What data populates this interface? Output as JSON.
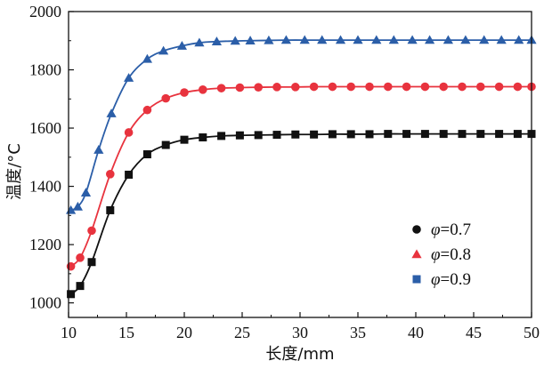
{
  "chart_data": {
    "type": "line",
    "title": "",
    "xlabel": "长度/mm",
    "ylabel": "温度/°C",
    "xlim": [
      10,
      50
    ],
    "ylim": [
      950,
      2000
    ],
    "x_ticks": [
      10,
      15,
      20,
      25,
      30,
      35,
      40,
      45,
      50
    ],
    "y_ticks": [
      1000,
      1200,
      1400,
      1600,
      1800,
      2000
    ],
    "legend_position": "right",
    "series": [
      {
        "name": "φ=0.7",
        "legend_symbol": "φ",
        "legend_value": "=0.7",
        "legend_marker": "circle",
        "marker": "square",
        "color": "#111111",
        "x": [
          10.2,
          11.0,
          12.0,
          13.6,
          15.2,
          16.8,
          18.4,
          20.0,
          21.6,
          23.2,
          24.8,
          26.4,
          28.0,
          29.6,
          31.2,
          32.8,
          34.4,
          36.0,
          37.6,
          39.2,
          40.8,
          42.4,
          44.0,
          45.6,
          47.2,
          48.8,
          50.0
        ],
        "y": [
          1030,
          1058,
          1140,
          1318,
          1440,
          1510,
          1542,
          1560,
          1568,
          1573,
          1575,
          1576,
          1577,
          1578,
          1578,
          1579,
          1579,
          1579,
          1580,
          1580,
          1580,
          1580,
          1580,
          1580,
          1580,
          1580,
          1580
        ]
      },
      {
        "name": "φ=0.8",
        "legend_symbol": "φ",
        "legend_value": "=0.8",
        "legend_marker": "triangle",
        "marker": "circle",
        "color": "#e8333e",
        "x": [
          10.2,
          11.0,
          12.0,
          13.6,
          15.2,
          16.8,
          18.4,
          20.0,
          21.6,
          23.2,
          24.8,
          26.4,
          28.0,
          29.6,
          31.2,
          32.8,
          34.4,
          36.0,
          37.6,
          39.2,
          40.8,
          42.4,
          44.0,
          45.6,
          47.2,
          48.8,
          50.0
        ],
        "y": [
          1125,
          1155,
          1248,
          1442,
          1585,
          1662,
          1702,
          1722,
          1732,
          1737,
          1739,
          1740,
          1741,
          1741,
          1742,
          1742,
          1742,
          1742,
          1742,
          1742,
          1742,
          1742,
          1742,
          1742,
          1742,
          1742,
          1742
        ]
      },
      {
        "name": "φ=0.9",
        "legend_symbol": "φ",
        "legend_value": "=0.9",
        "legend_marker": "square",
        "marker": "triangle",
        "color": "#2b5ea8",
        "x": [
          10.2,
          10.8,
          11.5,
          12.6,
          13.7,
          15.2,
          16.8,
          18.2,
          19.8,
          21.3,
          22.8,
          24.4,
          25.7,
          27.3,
          28.8,
          30.4,
          31.9,
          33.5,
          35.0,
          36.6,
          38.1,
          39.7,
          41.2,
          42.8,
          44.3,
          45.9,
          47.4,
          48.9,
          50.0
        ],
        "y": [
          1318,
          1330,
          1378,
          1525,
          1650,
          1772,
          1837,
          1865,
          1882,
          1893,
          1897,
          1899,
          1900,
          1901,
          1902,
          1902,
          1902,
          1902,
          1902,
          1902,
          1902,
          1902,
          1902,
          1902,
          1902,
          1902,
          1902,
          1902,
          1902
        ]
      }
    ]
  }
}
